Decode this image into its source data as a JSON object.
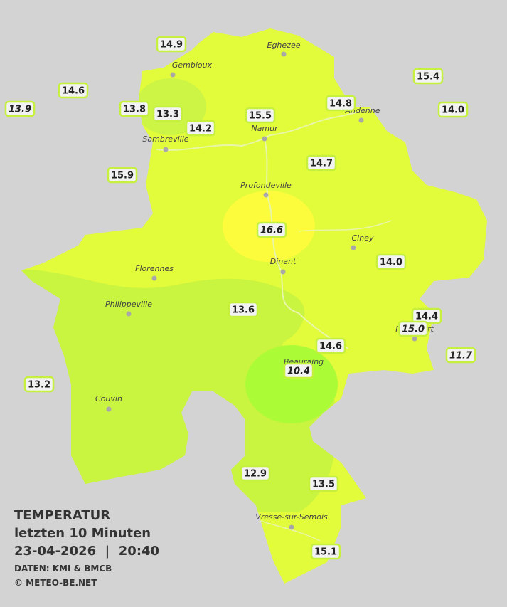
{
  "title": {
    "line1": "TEMPERATUR",
    "line2": "letzten 10 Minuten",
    "line3": "23-04-2026  |  20:40",
    "source": "DATEN: KMI & BMCB",
    "copyright": "© METEO-BE.NET"
  },
  "towns": [
    "Eghezee",
    "Gembloux",
    "Andenne",
    "Namur",
    "Sambreville",
    "Profondeville",
    "Ciney",
    "Dinant",
    "Florennes",
    "Philippeville",
    "Rochefort",
    "Beauraing",
    "Couvin",
    "Vresse-sur-Semois"
  ],
  "stations": [
    {
      "reading": "14.9",
      "italic": false
    },
    {
      "reading": "14.6",
      "italic": false
    },
    {
      "reading": "13.9",
      "italic": true
    },
    {
      "reading": "13.8",
      "italic": false
    },
    {
      "reading": "13.3",
      "italic": false
    },
    {
      "reading": "14.2",
      "italic": false
    },
    {
      "reading": "15.5",
      "italic": false
    },
    {
      "reading": "14.8",
      "italic": false
    },
    {
      "reading": "15.4",
      "italic": false
    },
    {
      "reading": "14.0",
      "italic": false
    },
    {
      "reading": "15.9",
      "italic": false
    },
    {
      "reading": "14.7",
      "italic": false
    },
    {
      "reading": "16.6",
      "italic": true
    },
    {
      "reading": "14.0",
      "italic": false
    },
    {
      "reading": "13.6",
      "italic": false
    },
    {
      "reading": "14.4",
      "italic": false
    },
    {
      "reading": "15.0",
      "italic": true
    },
    {
      "reading": "11.7",
      "italic": true
    },
    {
      "reading": "14.6",
      "italic": false
    },
    {
      "reading": "10.4",
      "italic": true
    },
    {
      "reading": "13.2",
      "italic": false
    },
    {
      "reading": "12.9",
      "italic": false
    },
    {
      "reading": "13.5",
      "italic": false
    },
    {
      "reading": "15.1",
      "italic": false
    }
  ]
}
